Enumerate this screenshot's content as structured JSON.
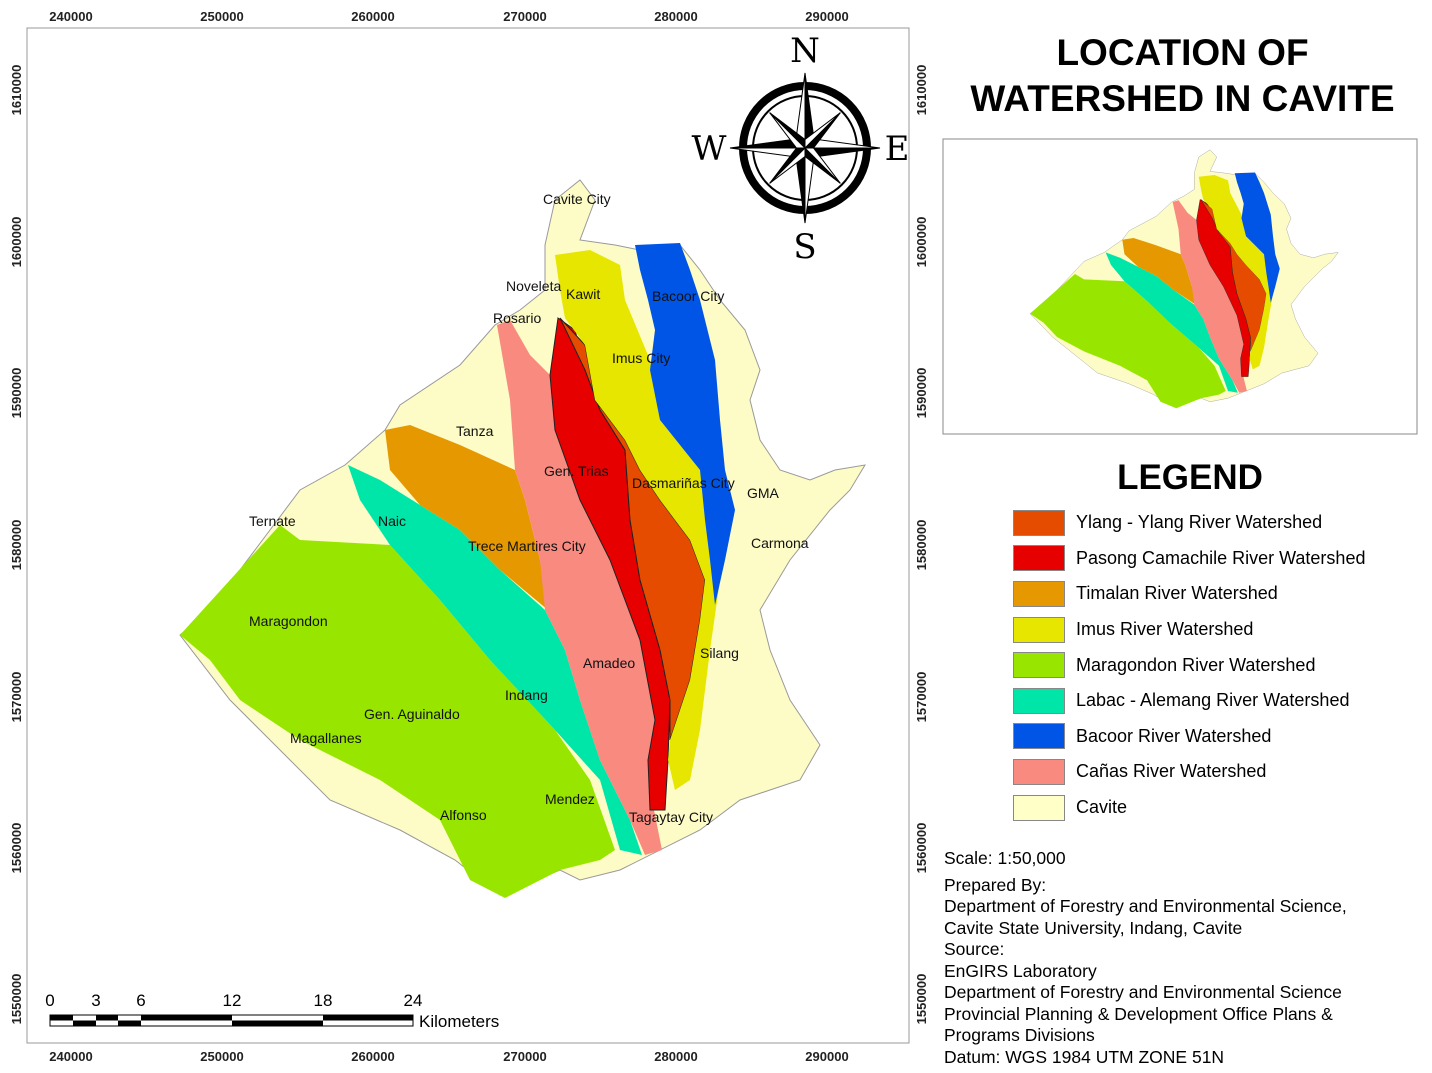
{
  "title": "LOCATION OF WATERSHED IN CAVITE",
  "title_lines": [
    "LOCATION OF",
    "WATERSHED IN CAVITE"
  ],
  "compass": {
    "n": "N",
    "s": "S",
    "e": "E",
    "w": "W"
  },
  "grid": {
    "x_ticks": [
      "240000",
      "250000",
      "260000",
      "270000",
      "280000",
      "290000"
    ],
    "y_ticks": [
      "1610000",
      "1600000",
      "1590000",
      "1580000",
      "1570000",
      "1560000",
      "1550000"
    ]
  },
  "towns": [
    "Cavite City",
    "Noveleta",
    "Kawit",
    "Bacoor City",
    "Rosario",
    "Imus City",
    "Tanza",
    "Gen. Trias",
    "Dasmariñas City",
    "GMA",
    "Ternate",
    "Naic",
    "Trece Martires City",
    "Carmona",
    "Maragondon",
    "Amadeo",
    "Silang",
    "Indang",
    "Gen. Aguinaldo",
    "Magallanes",
    "Mendez",
    "Alfonso",
    "Tagaytay City"
  ],
  "legend": {
    "title": "LEGEND",
    "items": [
      {
        "label": "Ylang - Ylang River Watershed",
        "color": "#e64c00"
      },
      {
        "label": "Pasong Camachile River Watershed",
        "color": "#e60000"
      },
      {
        "label": "Timalan River Watershed",
        "color": "#e69800"
      },
      {
        "label": "Imus River Watershed",
        "color": "#e6e600"
      },
      {
        "label": "Maragondon River Watershed",
        "color": "#98e600"
      },
      {
        "label": "Labac - Alemang River Watershed",
        "color": "#00e6a9"
      },
      {
        "label": "Bacoor River Watershed",
        "color": "#0055e6"
      },
      {
        "label": "Cañas River Watershed",
        "color": "#f88a80"
      },
      {
        "label": "Cavite",
        "color": "#ffffc8"
      }
    ]
  },
  "scale_bar": {
    "labels": [
      "0",
      "3",
      "6",
      "12",
      "18",
      "24"
    ],
    "unit": "Kilometers"
  },
  "credits": [
    "Scale: 1:50,000",
    "Prepared By:",
    "Department of Forestry and Environmental Science,",
    "Cavite State University, Indang, Cavite",
    "Source:",
    "EnGIRS Laboratory",
    "Department of Forestry and Environmental Science",
    "Provincial Planning & Development Office Plans &",
    "Programs Divisions",
    "Datum: WGS 1984 UTM ZONE 51N"
  ]
}
